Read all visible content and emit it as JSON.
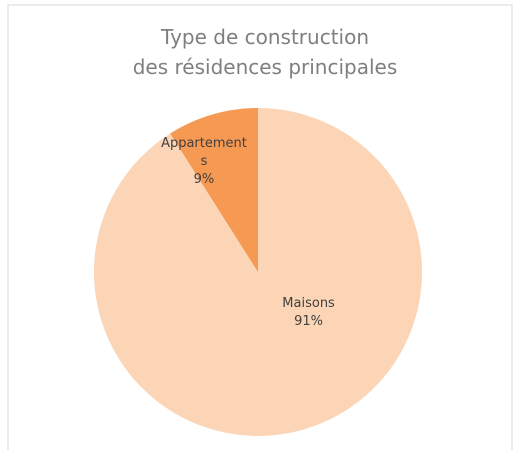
{
  "chart_data": {
    "type": "pie",
    "title": [
      "Type de construction",
      "des résidences principales"
    ],
    "categories": [
      "Maisons",
      "Appartements"
    ],
    "values": [
      91,
      9
    ],
    "value_labels": [
      "91%",
      "9%"
    ],
    "colors": [
      "#fbd5b6",
      "#f69a53"
    ]
  }
}
